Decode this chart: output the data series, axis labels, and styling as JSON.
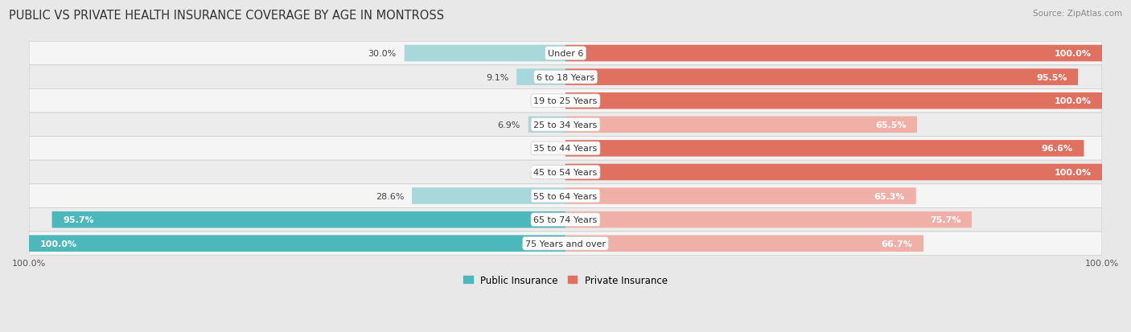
{
  "title": "PUBLIC VS PRIVATE HEALTH INSURANCE COVERAGE BY AGE IN MONTROSS",
  "source": "Source: ZipAtlas.com",
  "categories": [
    "Under 6",
    "6 to 18 Years",
    "19 to 25 Years",
    "25 to 34 Years",
    "35 to 44 Years",
    "45 to 54 Years",
    "55 to 64 Years",
    "65 to 74 Years",
    "75 Years and over"
  ],
  "public_values": [
    30.0,
    9.1,
    0.0,
    6.9,
    0.0,
    0.0,
    28.6,
    95.7,
    100.0
  ],
  "private_values": [
    100.0,
    95.5,
    100.0,
    65.5,
    96.6,
    100.0,
    65.3,
    75.7,
    66.7
  ],
  "public_color_strong": "#4db8bb",
  "public_color_light": "#a8d8da",
  "private_color_strong": "#e07060",
  "private_color_light": "#f0b0a8",
  "public_label": "Public Insurance",
  "private_label": "Private Insurance",
  "bar_height": 0.62,
  "title_fontsize": 10.5,
  "label_fontsize": 8.0,
  "value_fontsize": 8.0,
  "max_value": 100.0,
  "legend_fontsize": 8.5,
  "row_colors": [
    "#f0f0f0",
    "#e8e8e8"
  ],
  "fig_bg": "#e8e8e8"
}
